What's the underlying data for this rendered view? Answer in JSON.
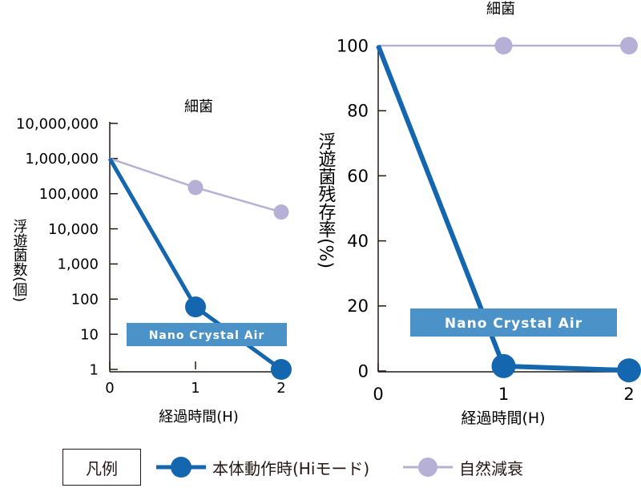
{
  "colors": {
    "hi_mode": "#1466ae",
    "natural": "#b7b0d6",
    "banner": "#4a92c7",
    "axis": "#231815"
  },
  "chart_data": [
    {
      "type": "line",
      "title": "細菌",
      "xlabel": "経過時間(H)",
      "ylabel": "浮遊菌数(個)",
      "yscale": "log",
      "ylim": [
        1,
        10000000
      ],
      "xlim": [
        0,
        2
      ],
      "x": [
        0,
        1,
        2
      ],
      "x_tick_labels": [
        "0",
        "1",
        "2"
      ],
      "y_tick_labels": [
        "10,000,000",
        "1,000,000",
        "100,000",
        "10,000",
        "1,000",
        "100",
        "10",
        "1"
      ],
      "y_tick_values": [
        10000000,
        1000000,
        100000,
        10000,
        1000,
        100,
        10,
        1
      ],
      "series": [
        {
          "name": "本体動作時(Hiモード)",
          "values": [
            1000000,
            60,
            1
          ]
        },
        {
          "name": "自然減衰",
          "values": [
            1000000,
            150000,
            30000
          ]
        }
      ],
      "banner": "Nano Crystal Air"
    },
    {
      "type": "line",
      "title": "細菌",
      "xlabel": "経過時間(H)",
      "ylabel": "浮遊菌残存率(%)",
      "ylim": [
        0,
        100
      ],
      "xlim": [
        0,
        2
      ],
      "x": [
        0,
        1,
        2
      ],
      "x_tick_labels": [
        "0",
        "1",
        "2"
      ],
      "y_tick_labels": [
        "100",
        "80",
        "60",
        "40",
        "20",
        "0"
      ],
      "y_tick_values": [
        100,
        80,
        60,
        40,
        20,
        0
      ],
      "series": [
        {
          "name": "本体動作時(Hiモード)",
          "values": [
            100,
            1.5,
            0.2
          ]
        },
        {
          "name": "自然減衰",
          "values": [
            100,
            100,
            100
          ]
        }
      ],
      "banner": "Nano Crystal Air"
    }
  ],
  "legend": {
    "title": "凡例",
    "items": [
      "本体動作時(Hiモード)",
      "自然減衰"
    ]
  }
}
